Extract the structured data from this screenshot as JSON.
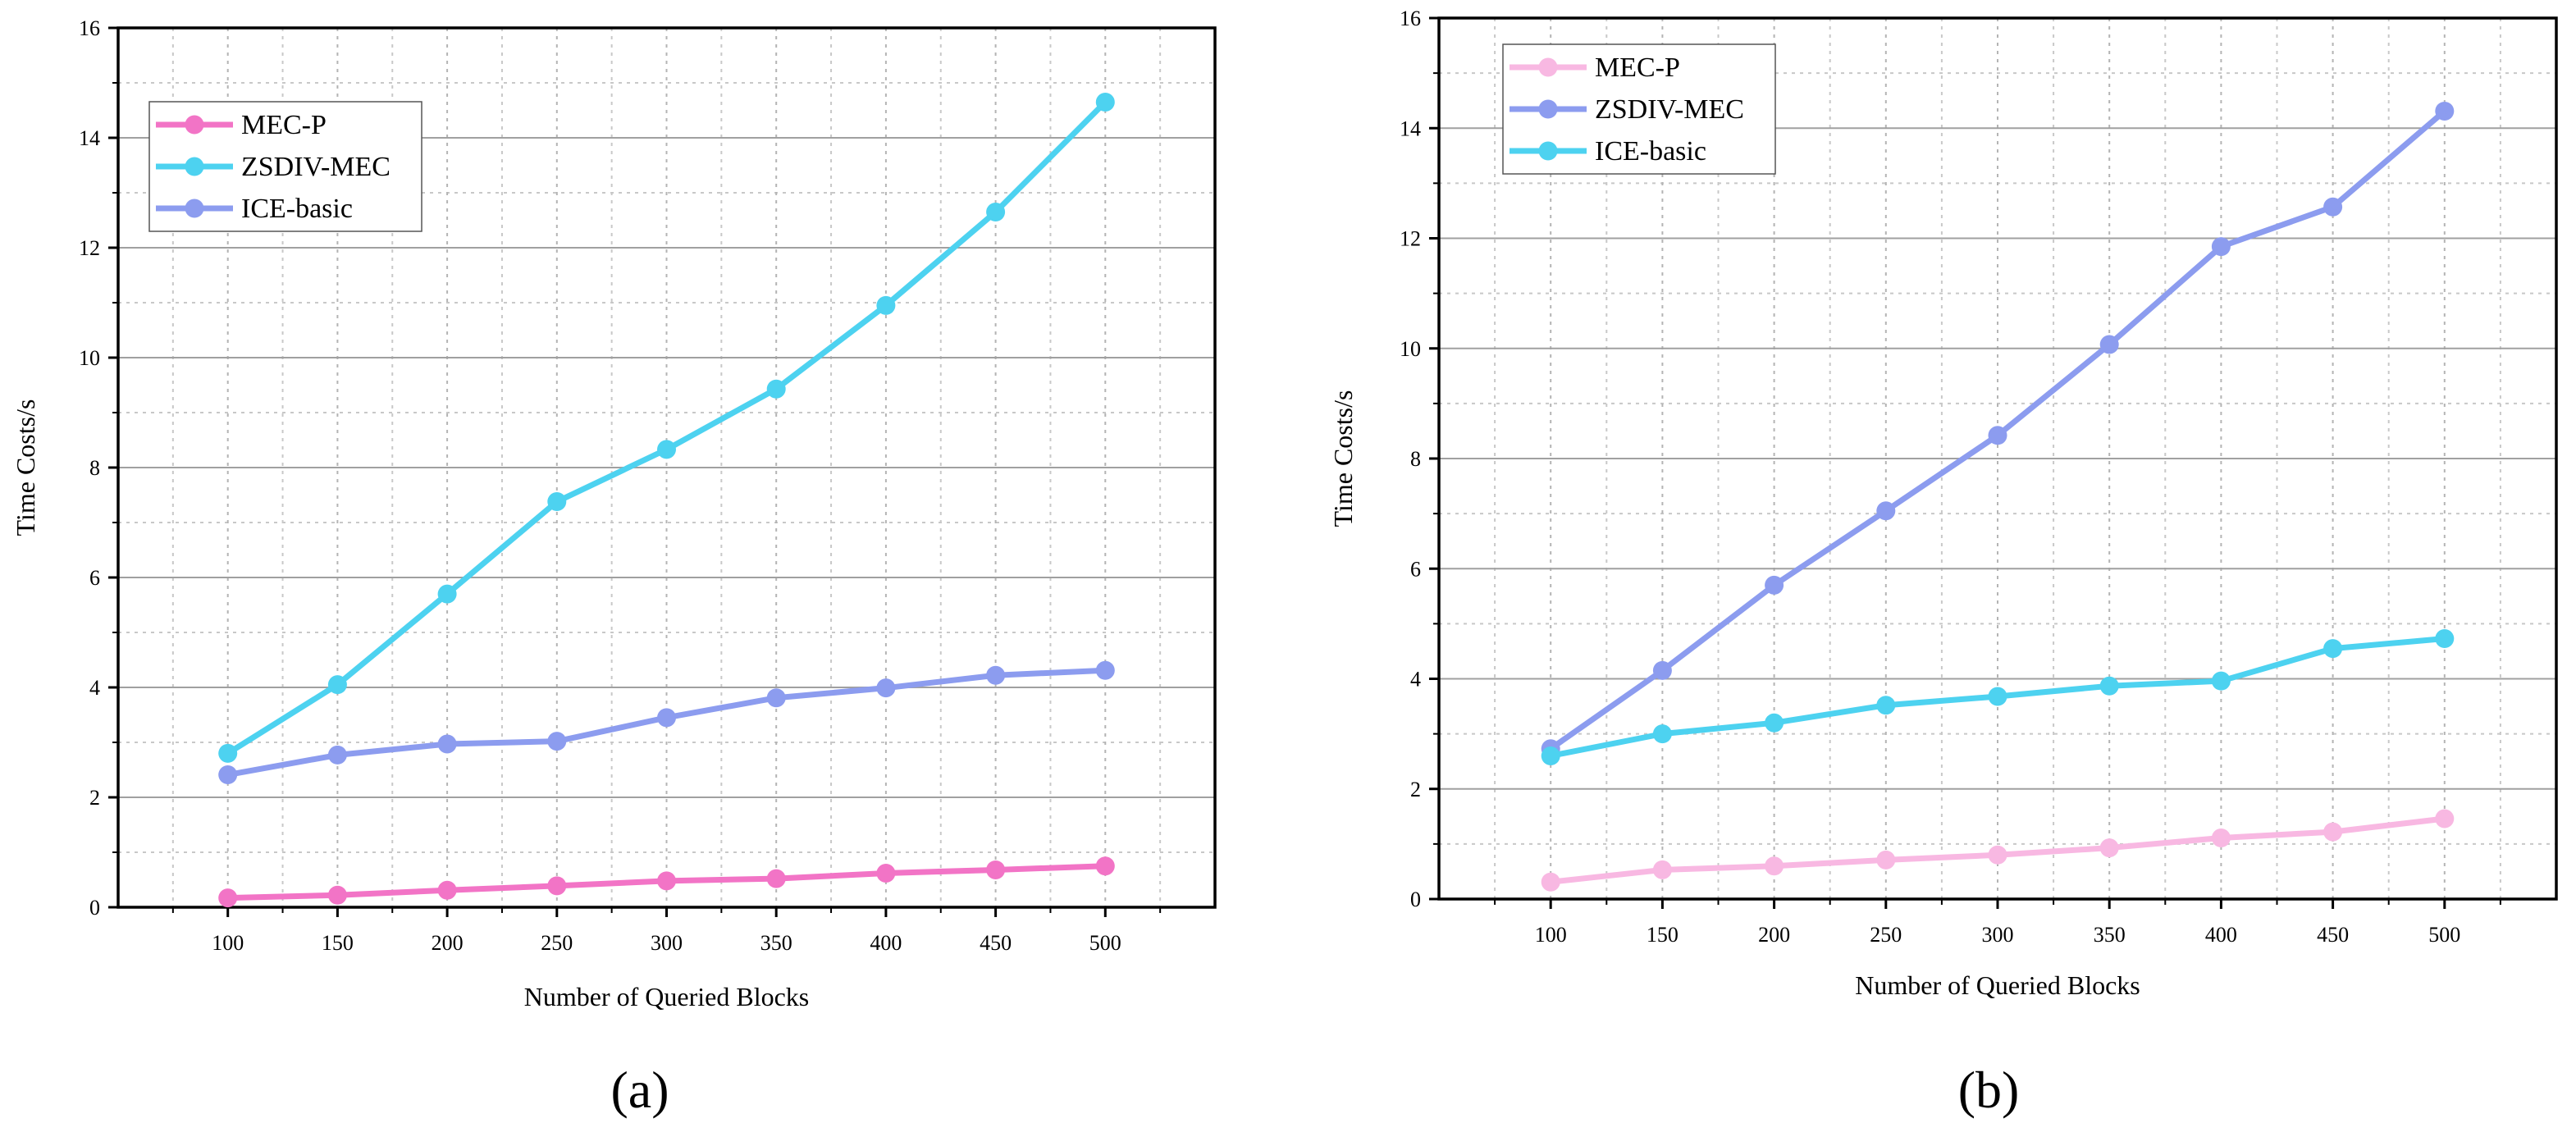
{
  "chart_data": [
    {
      "type": "line",
      "caption": "(a)",
      "xlabel": "Number of Queried Blocks",
      "ylabel": "Time Costs/s",
      "x": [
        100,
        150,
        200,
        250,
        300,
        350,
        400,
        450,
        500
      ],
      "x_ticks": [
        "100",
        "150",
        "200",
        "250",
        "300",
        "350",
        "400",
        "450",
        "500"
      ],
      "ylim": [
        0,
        16
      ],
      "y_ticks": [
        "0",
        "2",
        "4",
        "6",
        "8",
        "10",
        "12",
        "14",
        "16"
      ],
      "legend_position": "top-left",
      "series": [
        {
          "name": "MEC-P",
          "color": "#f274c6",
          "values": [
            0.17,
            0.22,
            0.31,
            0.39,
            0.48,
            0.52,
            0.62,
            0.68,
            0.75
          ]
        },
        {
          "name": "ZSDIV-MEC",
          "color": "#4dd2f0",
          "values": [
            2.8,
            4.05,
            5.7,
            7.38,
            8.33,
            9.43,
            10.95,
            12.65,
            14.65
          ]
        },
        {
          "name": "ICE-basic",
          "color": "#8c9cef",
          "values": [
            2.41,
            2.77,
            2.97,
            3.02,
            3.45,
            3.81,
            3.99,
            4.22,
            4.31
          ]
        }
      ]
    },
    {
      "type": "line",
      "caption": "(b)",
      "xlabel": "Number of Queried Blocks",
      "ylabel": "Time Costs/s",
      "x": [
        100,
        150,
        200,
        250,
        300,
        350,
        400,
        450,
        500
      ],
      "x_ticks": [
        "100",
        "150",
        "200",
        "250",
        "300",
        "350",
        "400",
        "450",
        "500"
      ],
      "ylim": [
        0,
        16
      ],
      "y_ticks": [
        "0",
        "2",
        "4",
        "6",
        "8",
        "10",
        "12",
        "14",
        "16"
      ],
      "legend_position": "top-left",
      "series": [
        {
          "name": "MEC-P",
          "color": "#f8b8e2",
          "values": [
            0.31,
            0.53,
            0.6,
            0.71,
            0.8,
            0.93,
            1.11,
            1.22,
            1.46
          ]
        },
        {
          "name": "ZSDIV-MEC",
          "color": "#8c9cef",
          "values": [
            2.73,
            4.15,
            5.7,
            7.05,
            8.42,
            10.07,
            11.85,
            12.57,
            14.31
          ]
        },
        {
          "name": "ICE-basic",
          "color": "#4dd2f0",
          "values": [
            2.6,
            3.0,
            3.2,
            3.52,
            3.68,
            3.87,
            3.96,
            4.55,
            4.73
          ]
        }
      ]
    }
  ]
}
